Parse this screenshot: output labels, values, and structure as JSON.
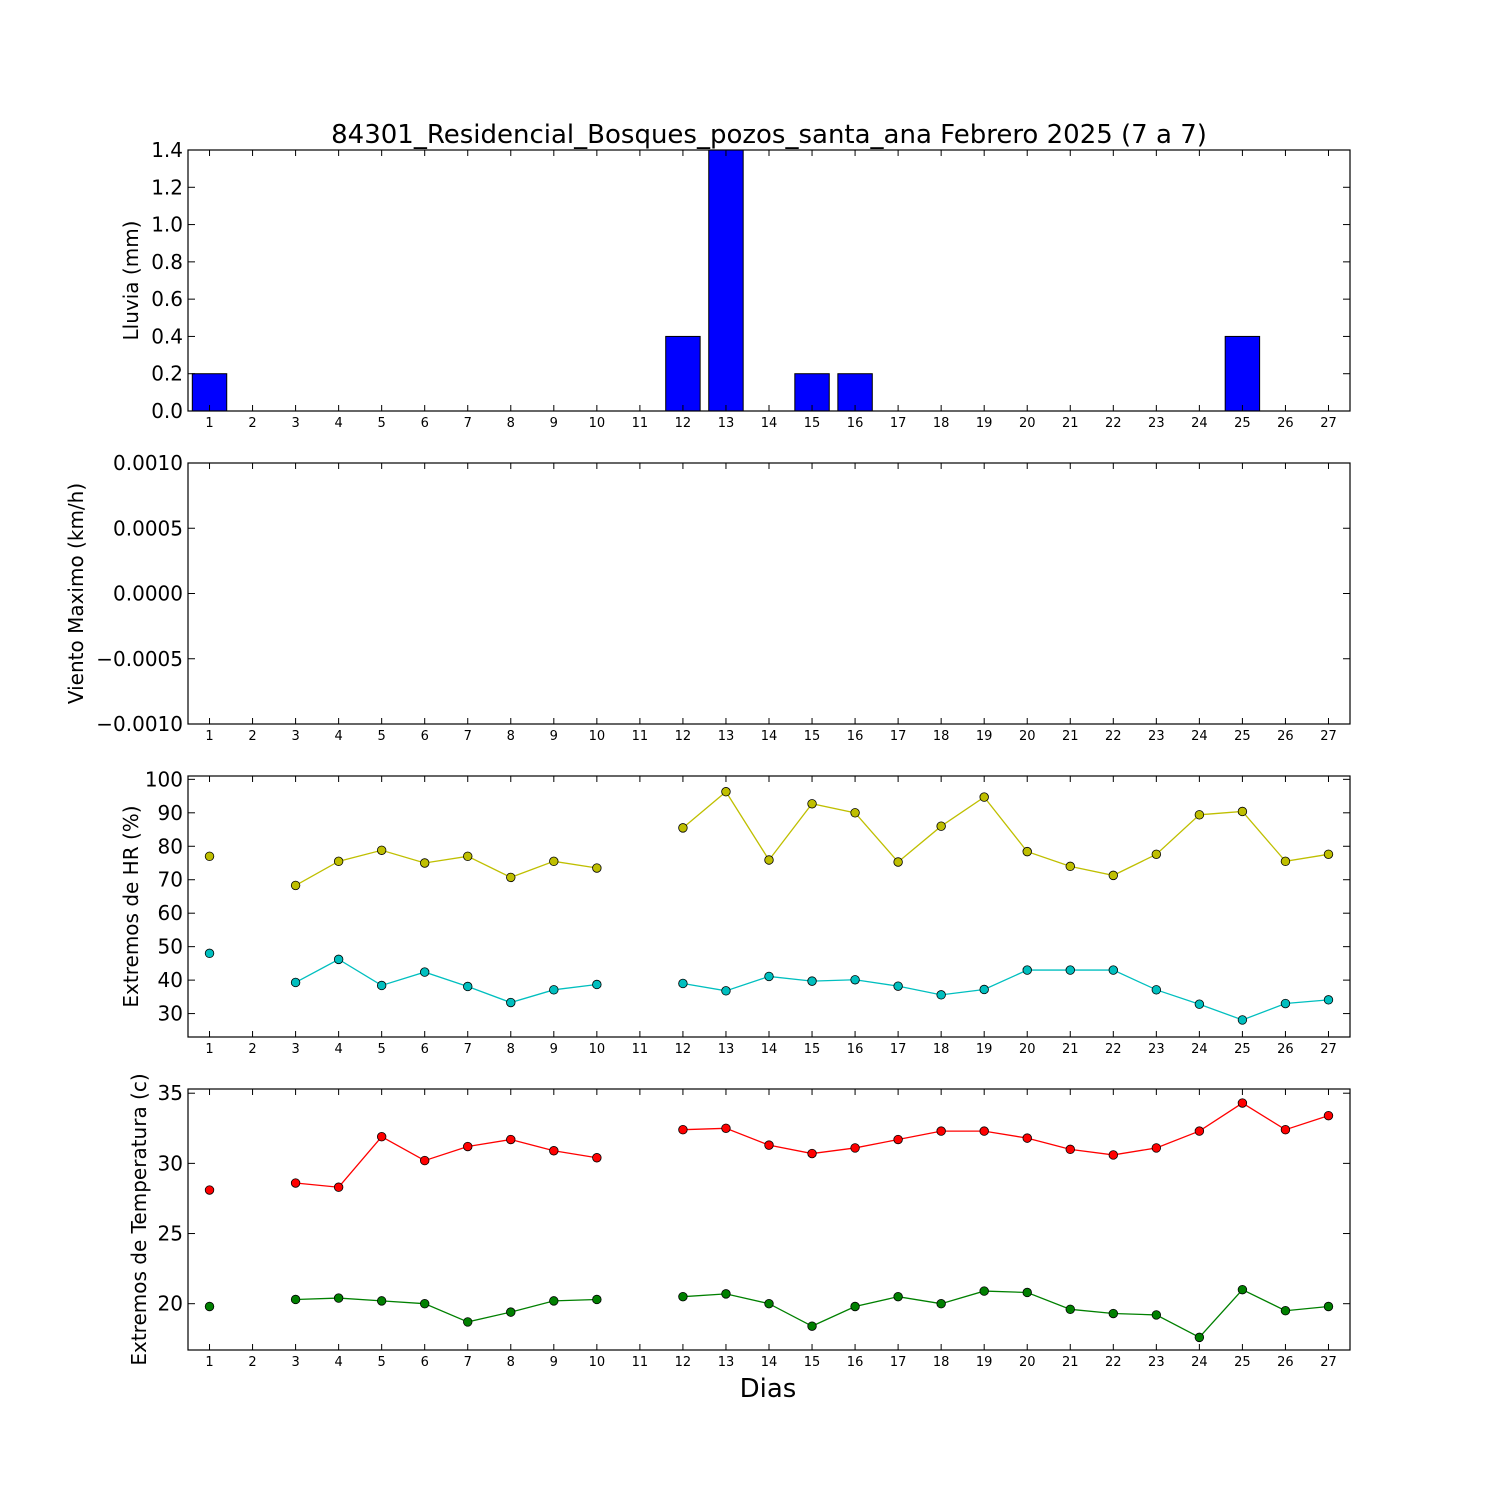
{
  "figure": {
    "title": "84301_Residencial_Bosques_pozos_santa_ana Febrero 2025  (7 a 7)",
    "xlabel": "Dias"
  },
  "chart_data": [
    {
      "type": "bar",
      "ylabel": "Lluvia (mm)",
      "ylim": [
        0,
        1.4
      ],
      "yticks": [
        "0.0",
        "0.2",
        "0.4",
        "0.6",
        "0.8",
        "1.0",
        "1.2",
        "1.4"
      ],
      "categories": [
        "1",
        "2",
        "3",
        "4",
        "5",
        "6",
        "7",
        "8",
        "9",
        "10",
        "11",
        "12",
        "13",
        "14",
        "15",
        "16",
        "17",
        "18",
        "19",
        "20",
        "21",
        "22",
        "23",
        "24",
        "25",
        "26",
        "27"
      ],
      "values": [
        0.2,
        0,
        0,
        0,
        0,
        0,
        0,
        0,
        0,
        0,
        0,
        0.4,
        1.4,
        0,
        0.2,
        0.2,
        0,
        0,
        0,
        0,
        0,
        0,
        0,
        0,
        0.4,
        0,
        0
      ],
      "color": "#0000ff"
    },
    {
      "type": "line",
      "ylabel": "Viento Maximo (km/h)",
      "ylim": [
        -0.001,
        0.001
      ],
      "yticks": [
        "−0.0010",
        "−0.0005",
        "0.0000",
        "0.0005",
        "0.0010"
      ],
      "categories": [
        "1",
        "2",
        "3",
        "4",
        "5",
        "6",
        "7",
        "8",
        "9",
        "10",
        "11",
        "12",
        "13",
        "14",
        "15",
        "16",
        "17",
        "18",
        "19",
        "20",
        "21",
        "22",
        "23",
        "24",
        "25",
        "26",
        "27"
      ],
      "series": []
    },
    {
      "type": "line",
      "ylabel": "Extremos de HR (%)",
      "ylim": [
        23,
        101
      ],
      "yticks": [
        "30",
        "40",
        "50",
        "60",
        "70",
        "80",
        "90",
        "100"
      ],
      "categories": [
        "1",
        "2",
        "3",
        "4",
        "5",
        "6",
        "7",
        "8",
        "9",
        "10",
        "11",
        "12",
        "13",
        "14",
        "15",
        "16",
        "17",
        "18",
        "19",
        "20",
        "21",
        "22",
        "23",
        "24",
        "25",
        "26",
        "27"
      ],
      "series": [
        {
          "color": "#bfbf00",
          "values": [
            77,
            null,
            68.3,
            75.5,
            78.8,
            75,
            77,
            70.7,
            75.5,
            73.5,
            null,
            85.5,
            96.3,
            75.9,
            92.7,
            90,
            75.3,
            86,
            94.7,
            78.4,
            74,
            71.3,
            77.6,
            89.4,
            90.4,
            75.5,
            77.6
          ]
        },
        {
          "color": "#00bfbf",
          "values": [
            48,
            null,
            39.3,
            46.2,
            38.4,
            42.4,
            38.1,
            33.3,
            37.1,
            38.7,
            null,
            39,
            36.8,
            41.1,
            39.7,
            40.1,
            38.2,
            35.6,
            37.2,
            43,
            43,
            43,
            37.1,
            32.8,
            28.1,
            33,
            34.1
          ]
        }
      ]
    },
    {
      "type": "line",
      "ylabel": "Extremos de Temperatura (c)",
      "ylim": [
        16.7,
        35.3
      ],
      "yticks": [
        "20",
        "25",
        "30",
        "35"
      ],
      "categories": [
        "1",
        "2",
        "3",
        "4",
        "5",
        "6",
        "7",
        "8",
        "9",
        "10",
        "11",
        "12",
        "13",
        "14",
        "15",
        "16",
        "17",
        "18",
        "19",
        "20",
        "21",
        "22",
        "23",
        "24",
        "25",
        "26",
        "27"
      ],
      "series": [
        {
          "color": "#ff0000",
          "values": [
            28.1,
            null,
            28.6,
            28.3,
            31.9,
            30.2,
            31.2,
            31.7,
            30.9,
            30.4,
            null,
            32.4,
            32.5,
            31.3,
            30.7,
            31.1,
            31.7,
            32.3,
            32.3,
            31.8,
            31,
            30.6,
            31.1,
            32.3,
            34.3,
            32.4,
            33.4
          ]
        },
        {
          "color": "#008000",
          "values": [
            19.8,
            null,
            20.3,
            20.4,
            20.2,
            20,
            18.7,
            19.4,
            20.2,
            20.3,
            null,
            20.5,
            20.7,
            20,
            18.4,
            19.8,
            20.5,
            20,
            20.9,
            20.8,
            19.6,
            19.3,
            19.2,
            17.6,
            21,
            19.5,
            19.8
          ]
        }
      ]
    }
  ]
}
